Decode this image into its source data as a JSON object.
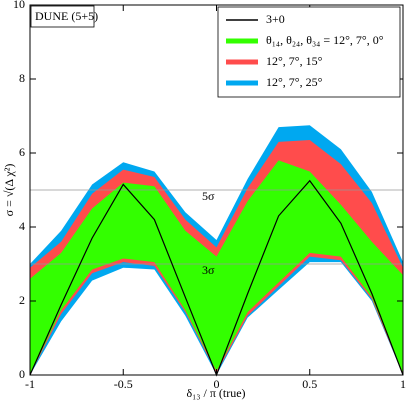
{
  "chart_data": {
    "type": "band",
    "annotation": "DUNE (5+5)",
    "x_label": "δ₁₃ / π (true)",
    "y_label": "σ = √(Δ χ²)",
    "xlim": [
      -1,
      1
    ],
    "ylim": [
      0,
      10
    ],
    "xticks": [
      -1,
      -0.5,
      0,
      0.5,
      1
    ],
    "yticks": [
      0,
      2,
      4,
      6,
      8,
      10
    ],
    "x": [
      -1,
      -0.833,
      -0.667,
      -0.5,
      -0.333,
      -0.167,
      0,
      0.167,
      0.333,
      0.5,
      0.667,
      0.833,
      1
    ],
    "hlines": [
      {
        "value": 5,
        "label": "5σ"
      },
      {
        "value": 3,
        "label": "3σ"
      }
    ],
    "hline_color": "#999999",
    "legend": "upper right",
    "series": [
      {
        "name": "3+0",
        "color": "#000000",
        "kind": "line",
        "values": [
          0,
          1.9,
          3.7,
          5.15,
          4.2,
          2.1,
          0,
          2.2,
          4.3,
          5.25,
          4.1,
          2.2,
          0
        ]
      },
      {
        "name": "θ₁₄, θ₂₄, θ₃₄ = 12°, 7°, 0°",
        "color": "#33ff00",
        "kind": "band",
        "upper": [
          2.6,
          3.3,
          4.5,
          5.2,
          5.1,
          3.9,
          3.2,
          4.7,
          5.8,
          5.5,
          4.6,
          3.6,
          2.7
        ],
        "lower": [
          0,
          1.75,
          2.85,
          3.15,
          3.05,
          1.75,
          0.1,
          1.7,
          2.5,
          3.3,
          3.2,
          2.1,
          0.05
        ]
      },
      {
        "name": "12°, 7°, 15°",
        "color": "#ff4c4c",
        "kind": "band",
        "upper": [
          2.9,
          3.6,
          4.9,
          5.55,
          5.35,
          4.2,
          3.45,
          5.05,
          6.3,
          6.35,
          5.7,
          4.65,
          2.9
        ],
        "lower": [
          0,
          1.65,
          2.75,
          3.05,
          2.95,
          1.7,
          0.05,
          1.6,
          2.4,
          3.2,
          3.1,
          2.05,
          0
        ]
      },
      {
        "name": "12°, 7°, 25°",
        "color": "#00a8f0",
        "kind": "band",
        "upper": [
          3.0,
          3.9,
          5.15,
          5.75,
          5.5,
          4.4,
          3.65,
          5.3,
          6.7,
          6.75,
          6.1,
          4.95,
          3.05
        ],
        "lower": [
          0,
          1.45,
          2.55,
          2.9,
          2.85,
          1.6,
          0,
          1.55,
          2.3,
          3.05,
          3.05,
          2.0,
          0
        ]
      }
    ]
  }
}
